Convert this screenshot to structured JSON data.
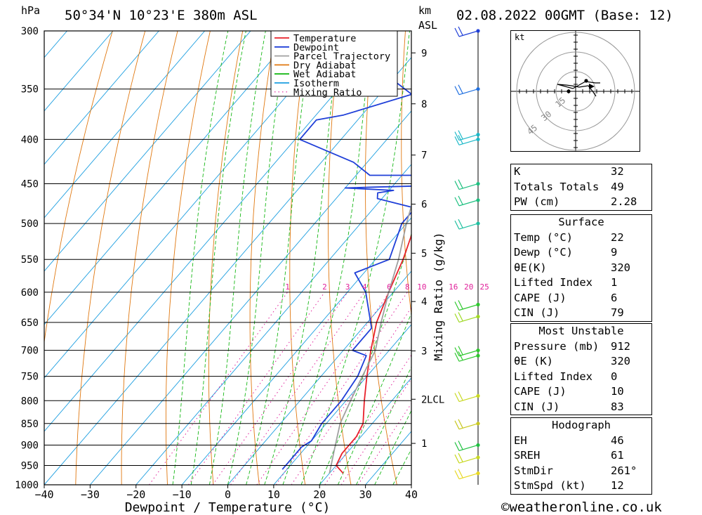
{
  "header": {
    "location": "50°34'N  10°23'E  380m  ASL",
    "datetime": "02.08.2022  00GMT  (Base: 12)",
    "pressure_unit": "hPa",
    "height_unit": "km",
    "height_unit2": "ASL"
  },
  "chart_data": {
    "type": "line",
    "title": "Skew-T log-P diagram",
    "xlabel": "Dewpoint / Temperature (°C)",
    "ylabel": "hPa",
    "right_ylabel": "Mixing Ratio (g/kg)",
    "xlim": [
      -40,
      40
    ],
    "ylim": [
      1000,
      300
    ],
    "x_ticks": [
      -40,
      -30,
      -20,
      -10,
      0,
      10,
      20,
      30,
      40
    ],
    "x_tick_labels": [
      "−40",
      "−30",
      "−20",
      "−10",
      "0",
      "10",
      "20",
      "30",
      "40"
    ],
    "pressure_levels": [
      300,
      350,
      400,
      450,
      500,
      550,
      600,
      650,
      700,
      750,
      800,
      850,
      900,
      950,
      1000
    ],
    "height_km_ticks": [
      {
        "label": "9",
        "p": 318
      },
      {
        "label": "8",
        "p": 364
      },
      {
        "label": "7",
        "p": 417
      },
      {
        "label": "6",
        "p": 475
      },
      {
        "label": "5",
        "p": 541
      },
      {
        "label": "4",
        "p": 615
      },
      {
        "label": "3",
        "p": 701
      },
      {
        "label": "2",
        "p": 797
      },
      {
        "label": "1",
        "p": 896
      }
    ],
    "lcl": {
      "label": "LCL",
      "p": 797
    },
    "mixing_ratio_labels": [
      "1",
      "2",
      "3",
      "4",
      "6",
      "8",
      "10",
      "16",
      "20",
      "25"
    ],
    "mixing_ratio_values": [
      1,
      2,
      3,
      4,
      6,
      8,
      10,
      16,
      20,
      25
    ],
    "legend": [
      {
        "name": "Temperature",
        "color": "#e8202a"
      },
      {
        "name": "Dewpoint",
        "color": "#1f3fd8"
      },
      {
        "name": "Parcel Trajectory",
        "color": "#a0a0a0"
      },
      {
        "name": "Dry Adiabat",
        "color": "#e07810"
      },
      {
        "name": "Wet Adiabat",
        "color": "#17b817"
      },
      {
        "name": "Isotherm",
        "color": "#1c9ee0"
      },
      {
        "name": "Mixing Ratio",
        "color": "#e0209a"
      }
    ],
    "series": [
      {
        "name": "Temperature",
        "points": [
          [
            970,
            23
          ],
          [
            950,
            20
          ],
          [
            920,
            19
          ],
          [
            880,
            19
          ],
          [
            850,
            18
          ],
          [
            800,
            14
          ],
          [
            750,
            10
          ],
          [
            700,
            6
          ],
          [
            650,
            2
          ],
          [
            600,
            -1
          ],
          [
            550,
            -4
          ],
          [
            500,
            -8
          ],
          [
            470,
            -13
          ],
          [
            455,
            -13
          ],
          [
            400,
            -20
          ],
          [
            350,
            -27
          ],
          [
            300,
            -35
          ]
        ]
      },
      {
        "name": "Dewpoint",
        "points": [
          [
            960,
            9
          ],
          [
            920,
            9
          ],
          [
            905,
            9
          ],
          [
            890,
            10
          ],
          [
            850,
            9
          ],
          [
            800,
            9
          ],
          [
            750,
            8
          ],
          [
            710,
            6
          ],
          [
            700,
            2
          ],
          [
            660,
            2
          ],
          [
            600,
            -6
          ],
          [
            570,
            -12
          ],
          [
            550,
            -7
          ],
          [
            500,
            -11
          ],
          [
            480,
            -11
          ],
          [
            468,
            -21
          ],
          [
            461,
            -22
          ],
          [
            458,
            -19
          ],
          [
            455,
            -30
          ],
          [
            454,
            -24
          ],
          [
            452,
            -10
          ],
          [
            446,
            -4
          ],
          [
            440,
            -10
          ],
          [
            440,
            -27
          ],
          [
            425,
            -33
          ],
          [
            400,
            -49
          ],
          [
            380,
            -49
          ],
          [
            375,
            -44
          ],
          [
            355,
            -33
          ],
          [
            330,
            -46
          ],
          [
            315,
            -52
          ],
          [
            312,
            -50
          ],
          [
            300,
            -54
          ]
        ]
      },
      {
        "name": "Parcel Trajectory",
        "points": [
          [
            970,
            20
          ],
          [
            900,
            16
          ],
          [
            850,
            13
          ],
          [
            800,
            11
          ],
          [
            750,
            9
          ],
          [
            700,
            7
          ],
          [
            650,
            3
          ],
          [
            600,
            -1
          ],
          [
            550,
            -5
          ],
          [
            500,
            -10
          ],
          [
            450,
            -15
          ],
          [
            400,
            -21
          ],
          [
            350,
            -28
          ],
          [
            300,
            -35
          ]
        ]
      }
    ]
  },
  "hodograph": {
    "unit": "kt",
    "ring_labels": [
      "15",
      "30",
      "45"
    ]
  },
  "indices": {
    "general": [
      {
        "label": "K",
        "value": "32"
      },
      {
        "label": "Totals Totals",
        "value": "49"
      },
      {
        "label": "PW (cm)",
        "value": "2.28"
      }
    ],
    "surface_title": "Surface",
    "surface": [
      {
        "label": "Temp (°C)",
        "value": "22"
      },
      {
        "label": "Dewp (°C)",
        "value": "9"
      },
      {
        "label": "θE(K)",
        "value": "320"
      },
      {
        "label": "Lifted Index",
        "value": "1"
      },
      {
        "label": "CAPE (J)",
        "value": "6"
      },
      {
        "label": "CIN (J)",
        "value": "79"
      }
    ],
    "unstable_title": "Most Unstable",
    "unstable": [
      {
        "label": "Pressure (mb)",
        "value": "912"
      },
      {
        "label": "θE (K)",
        "value": "320"
      },
      {
        "label": "Lifted Index",
        "value": "0"
      },
      {
        "label": "CAPE (J)",
        "value": "10"
      },
      {
        "label": "CIN (J)",
        "value": "83"
      }
    ],
    "hodo_title": "Hodograph",
    "hodo": [
      {
        "label": "EH",
        "value": "46"
      },
      {
        "label": "SREH",
        "value": "61"
      },
      {
        "label": "StmDir",
        "value": "261°"
      },
      {
        "label": "StmSpd (kt)",
        "value": "12"
      }
    ]
  },
  "footer": {
    "credit": "©weatheronline.co.uk"
  }
}
